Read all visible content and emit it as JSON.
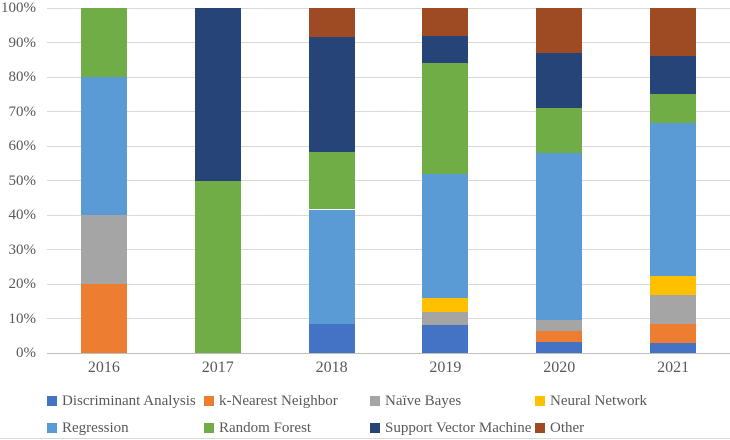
{
  "chart_data": {
    "type": "bar",
    "subtype": "stacked-100-percent-column",
    "title": "",
    "xlabel": "",
    "ylabel": "",
    "unit": "percent",
    "grid": true,
    "legend_position": "bottom",
    "ylim": [
      0,
      100
    ],
    "y_ticks": [
      {
        "value": 0,
        "label": "0%"
      },
      {
        "value": 10,
        "label": "10%"
      },
      {
        "value": 20,
        "label": "20%"
      },
      {
        "value": 30,
        "label": "30%"
      },
      {
        "value": 40,
        "label": "40%"
      },
      {
        "value": 50,
        "label": "50%"
      },
      {
        "value": 60,
        "label": "60%"
      },
      {
        "value": 70,
        "label": "70%"
      },
      {
        "value": 80,
        "label": "80%"
      },
      {
        "value": 90,
        "label": "90%"
      },
      {
        "value": 100,
        "label": "100%"
      }
    ],
    "categories": [
      "2016",
      "2017",
      "2018",
      "2019",
      "2020",
      "2021"
    ],
    "series": [
      {
        "name": "Discriminant Analysis",
        "color": "#4472C4",
        "values": [
          0,
          0,
          8.3,
          8,
          3.2,
          2.8
        ]
      },
      {
        "name": "k-Nearest Neighbor",
        "color": "#ED7D31",
        "values": [
          20,
          0,
          0,
          0,
          3.2,
          5.6
        ]
      },
      {
        "name": "Naïve Bayes",
        "color": "#A5A5A5",
        "values": [
          20,
          0,
          0,
          4,
          3.2,
          8.3
        ]
      },
      {
        "name": "Neural Network",
        "color": "#FFC000",
        "values": [
          0,
          0,
          0,
          4,
          0,
          5.6
        ]
      },
      {
        "name": "Regression",
        "color": "#5B9BD5",
        "values": [
          40,
          0,
          33.3,
          36,
          48.4,
          44.4
        ]
      },
      {
        "name": "Random Forest",
        "color": "#70AD47",
        "values": [
          20,
          50,
          16.7,
          32,
          12.9,
          8.3
        ]
      },
      {
        "name": "Support Vector Machine",
        "color": "#264478",
        "values": [
          0,
          50,
          33.4,
          8,
          16.2,
          11.1
        ]
      },
      {
        "name": "Other",
        "color": "#9E4A22",
        "values": [
          0,
          0,
          8.3,
          8,
          12.9,
          13.9
        ]
      }
    ],
    "legend_rows": [
      [
        0,
        1,
        2,
        3
      ],
      [
        4,
        5,
        6,
        7
      ]
    ]
  },
  "layout_colors": {
    "gridline": "#D9D9D9",
    "axis_line": "#BFBFBF",
    "tick_text": "#595959",
    "background": "#FFFFFF"
  }
}
